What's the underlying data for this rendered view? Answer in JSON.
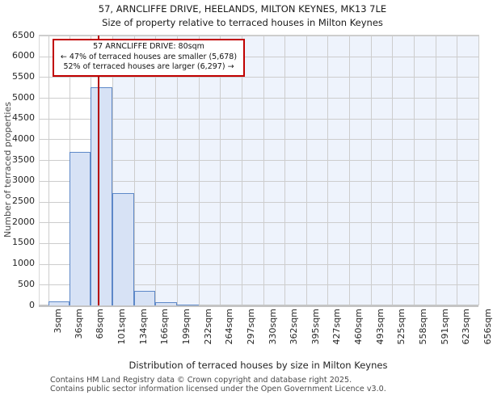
{
  "title": "57, ARNCLIFFE DRIVE, HEELANDS, MILTON KEYNES, MK13 7LE",
  "subtitle": "Size of property relative to terraced houses in Milton Keynes",
  "annotation": {
    "line1": "57 ARNCLIFFE DRIVE: 80sqm",
    "line2": "← 47% of terraced houses are smaller (5,678)",
    "line3": "52% of terraced houses are larger (6,297) →"
  },
  "footer": {
    "line1": "Contains HM Land Registry data © Crown copyright and database right 2025.",
    "line2": "Contains public sector information licensed under the Open Government Licence v3.0."
  },
  "chart_data": {
    "type": "bar",
    "title": "57, ARNCLIFFE DRIVE, HEELANDS, MILTON KEYNES, MK13 7LE",
    "subtitle": "Size of property relative to terraced houses in Milton Keynes",
    "xlabel": "Distribution of terraced houses by size in Milton Keynes",
    "ylabel": "Number of terraced properties",
    "bin_edges_sqm": [
      3,
      36,
      68,
      101,
      134,
      166,
      199,
      232,
      264,
      297,
      330,
      362,
      395,
      427,
      460,
      493,
      525,
      558,
      591,
      623,
      656
    ],
    "x_tick_labels": [
      "3sqm",
      "36sqm",
      "68sqm",
      "101sqm",
      "134sqm",
      "166sqm",
      "199sqm",
      "232sqm",
      "264sqm",
      "297sqm",
      "330sqm",
      "362sqm",
      "395sqm",
      "427sqm",
      "460sqm",
      "493sqm",
      "525sqm",
      "558sqm",
      "591sqm",
      "623sqm",
      "656sqm"
    ],
    "values": [
      100,
      3700,
      5250,
      2700,
      350,
      75,
      25,
      0,
      0,
      0,
      0,
      0,
      0,
      0,
      0,
      0,
      0,
      0,
      0,
      0
    ],
    "ylim": [
      0,
      6500
    ],
    "y_ticks": [
      0,
      500,
      1000,
      1500,
      2000,
      2500,
      3000,
      3500,
      4000,
      4500,
      5000,
      5500,
      6000,
      6500
    ],
    "grid": true,
    "marker_value_sqm": 80,
    "shaded_region_start_sqm": 101,
    "smaller_count": 5678,
    "larger_count": 6297,
    "smaller_pct": 47,
    "larger_pct": 52,
    "colors": {
      "bar_fill": "#d7e2f5",
      "bar_edge": "#5d88c8",
      "marker_line": "#b40000",
      "annotation_border": "#c00000",
      "shaded_region": "#eef3fc",
      "gridline": "#cdcdcd"
    }
  }
}
